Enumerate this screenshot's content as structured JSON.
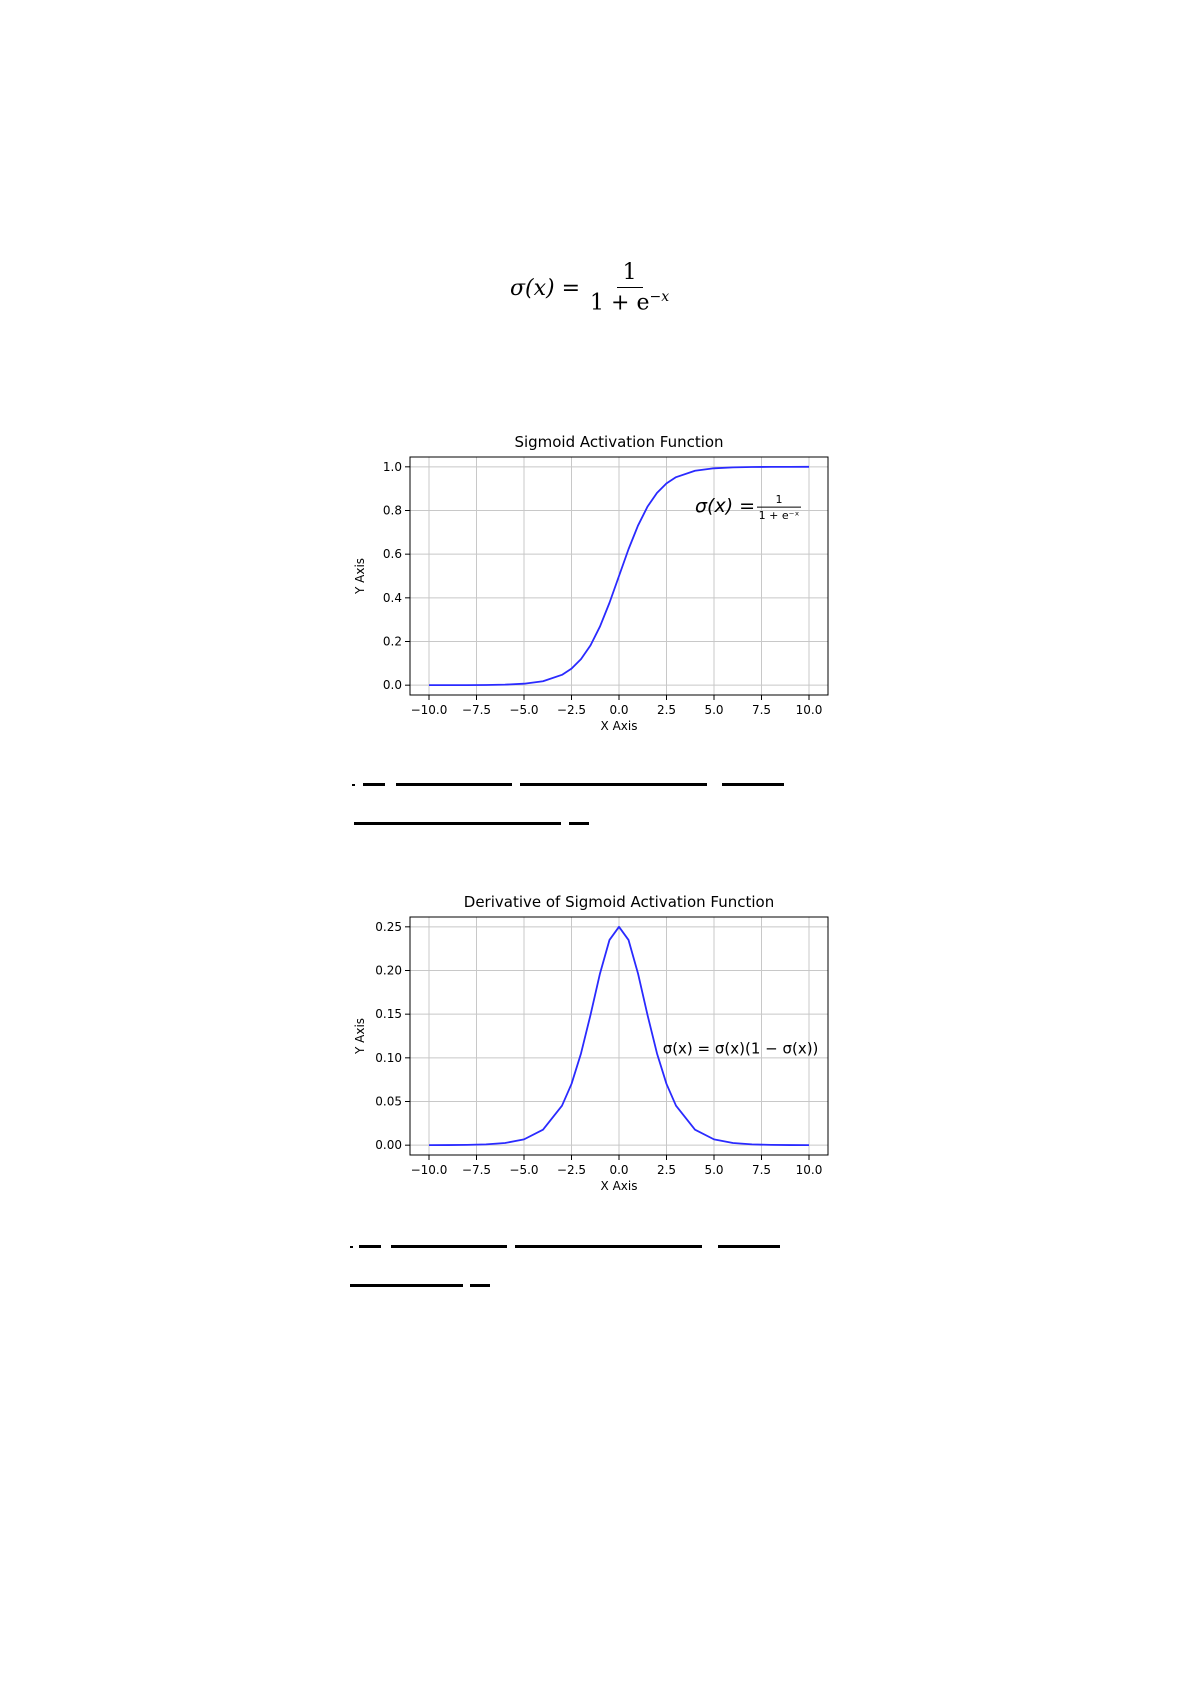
{
  "formula": {
    "lhs": "σ(x) =",
    "numerator": "1",
    "denominator_base": "1 + e",
    "denominator_exp": "−x"
  },
  "chart_data": [
    {
      "type": "line",
      "title": "Sigmoid Activation Function",
      "xlabel": "X Axis",
      "ylabel": "Y Axis",
      "xlim": [
        -10.0,
        10.0
      ],
      "ylim": [
        0.0,
        1.0
      ],
      "x_ticks": [
        "−10.0",
        "−7.5",
        "−5.0",
        "−2.5",
        "0.0",
        "2.5",
        "5.0",
        "7.5",
        "10.0"
      ],
      "x_tick_values": [
        -10,
        -7.5,
        -5,
        -2.5,
        0,
        2.5,
        5,
        7.5,
        10
      ],
      "y_ticks": [
        "0.0",
        "0.2",
        "0.4",
        "0.6",
        "0.8",
        "1.0"
      ],
      "y_tick_values": [
        0.0,
        0.2,
        0.4,
        0.6,
        0.8,
        1.0
      ],
      "grid": true,
      "line_color": "#2a2aff",
      "annotation": {
        "lhs": "σ(x) =",
        "numerator": "1",
        "denominator": "1 + e⁻ˣ",
        "x": 4.0,
        "y": 0.82
      },
      "series": [
        {
          "x": [
            -10,
            -9,
            -8,
            -7,
            -6,
            -5,
            -4,
            -3,
            -2.5,
            -2,
            -1.5,
            -1,
            -0.5,
            0,
            0.5,
            1,
            1.5,
            2,
            2.5,
            3,
            4,
            5,
            6,
            7,
            8,
            9,
            10
          ],
          "y": [
            4.54e-05,
            0.000123,
            0.000335,
            0.000911,
            0.00247,
            0.00669,
            0.018,
            0.0474,
            0.0759,
            0.1192,
            0.1824,
            0.2689,
            0.3775,
            0.5,
            0.6225,
            0.7311,
            0.8176,
            0.8808,
            0.9241,
            0.9526,
            0.982,
            0.9933,
            0.9975,
            0.9991,
            0.9997,
            0.9999,
            1.0
          ]
        }
      ]
    },
    {
      "type": "line",
      "title": "Derivative of Sigmoid Activation Function",
      "xlabel": "X Axis",
      "ylabel": "Y Axis",
      "xlim": [
        -10.0,
        10.0
      ],
      "ylim": [
        0.0,
        0.25
      ],
      "x_ticks": [
        "−10.0",
        "−7.5",
        "−5.0",
        "−2.5",
        "0.0",
        "2.5",
        "5.0",
        "7.5",
        "10.0"
      ],
      "x_tick_values": [
        -10,
        -7.5,
        -5,
        -2.5,
        0,
        2.5,
        5,
        7.5,
        10
      ],
      "y_ticks": [
        "0.00",
        "0.05",
        "0.10",
        "0.15",
        "0.20",
        "0.25"
      ],
      "y_tick_values": [
        0.0,
        0.05,
        0.1,
        0.15,
        0.2,
        0.25
      ],
      "grid": true,
      "line_color": "#2a2aff",
      "annotation": {
        "text": "σ(x)  = σ(x)(1 − σ(x))",
        "x": 2.3,
        "y": 0.105
      },
      "series": [
        {
          "x": [
            -10,
            -9,
            -8,
            -7,
            -6,
            -5,
            -4,
            -3,
            -2.5,
            -2,
            -1.5,
            -1,
            -0.5,
            0,
            0.5,
            1,
            1.5,
            2,
            2.5,
            3,
            4,
            5,
            6,
            7,
            8,
            9,
            10
          ],
          "y": [
            4.54e-05,
            0.000123,
            0.000335,
            0.000911,
            0.00247,
            0.00665,
            0.0177,
            0.0452,
            0.0701,
            0.105,
            0.1491,
            0.1966,
            0.235,
            0.25,
            0.235,
            0.1966,
            0.1491,
            0.105,
            0.0701,
            0.0452,
            0.0177,
            0.00665,
            0.00247,
            0.000911,
            0.000335,
            0.000123,
            4.54e-05
          ]
        }
      ]
    }
  ]
}
